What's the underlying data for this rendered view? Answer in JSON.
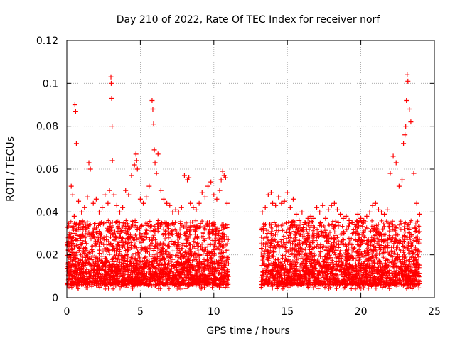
{
  "chart_data": {
    "type": "scatter",
    "title": "Day 210 of 2022, Rate Of TEC Index for receiver norf",
    "xlabel": "GPS time / hours",
    "ylabel": "ROTI / TECUs",
    "xlim": [
      0,
      25
    ],
    "ylim": [
      0,
      0.12
    ],
    "xticks": [
      0,
      5,
      10,
      15,
      20,
      25
    ],
    "xtick_labels": [
      "0",
      "5",
      "10",
      "15",
      "20",
      "25"
    ],
    "yticks": [
      0,
      0.02,
      0.04,
      0.06,
      0.08,
      0.1,
      0.12
    ],
    "ytick_labels": [
      "0",
      "0.02",
      "0.04",
      "0.06",
      "0.08",
      "0.1",
      "0.12"
    ],
    "grid": true,
    "legend": "none",
    "marker": "+",
    "series_color": "#ff0000",
    "data_gap_hours": [
      11.0,
      13.2
    ],
    "series": [
      {
        "x": [
          0.1,
          0.2,
          0.3,
          0.4,
          0.5,
          0.55,
          0.6,
          0.65,
          0.8,
          1.0,
          1.2,
          1.4,
          1.5,
          1.6,
          1.8,
          2.0,
          2.2,
          2.4,
          2.6,
          2.8,
          2.9,
          3.0,
          3.02,
          3.05,
          3.08,
          3.1,
          3.2,
          3.4,
          3.6,
          3.8,
          4.0,
          4.2,
          4.4,
          4.6,
          4.7,
          4.75,
          4.8,
          5.0,
          5.2,
          5.4,
          5.6,
          5.8,
          5.85,
          5.9,
          5.95,
          6.0,
          6.1,
          6.2,
          6.4,
          6.6,
          6.8,
          7.0,
          7.2,
          7.4,
          7.6,
          7.8,
          8.0,
          8.2,
          8.3,
          8.4,
          8.6,
          8.8,
          9.0,
          9.2,
          9.4,
          9.6,
          9.8,
          10.0,
          10.2,
          10.4,
          10.5,
          10.6,
          10.7,
          10.8,
          10.9,
          13.3,
          13.5,
          13.7,
          13.9,
          14.0,
          14.2,
          14.4,
          14.6,
          14.8,
          15.0,
          15.2,
          15.4,
          15.6,
          15.8,
          16.0,
          16.2,
          16.4,
          16.6,
          16.8,
          17.0,
          17.2,
          17.4,
          17.6,
          17.8,
          18.0,
          18.2,
          18.4,
          18.6,
          18.8,
          19.0,
          19.2,
          19.4,
          19.6,
          19.8,
          20.0,
          20.2,
          20.4,
          20.6,
          20.8,
          21.0,
          21.2,
          21.4,
          21.6,
          21.8,
          22.0,
          22.2,
          22.4,
          22.6,
          22.8,
          22.9,
          23.0,
          23.05,
          23.1,
          23.15,
          23.2,
          23.3,
          23.4,
          23.6,
          23.8,
          24.0
        ],
        "y": [
          0.033,
          0.028,
          0.052,
          0.048,
          0.038,
          0.09,
          0.087,
          0.072,
          0.045,
          0.04,
          0.042,
          0.047,
          0.063,
          0.06,
          0.044,
          0.046,
          0.04,
          0.042,
          0.048,
          0.044,
          0.05,
          0.103,
          0.1,
          0.093,
          0.08,
          0.064,
          0.048,
          0.043,
          0.04,
          0.042,
          0.05,
          0.048,
          0.057,
          0.062,
          0.067,
          0.064,
          0.06,
          0.046,
          0.044,
          0.047,
          0.052,
          0.092,
          0.088,
          0.081,
          0.069,
          0.063,
          0.058,
          0.067,
          0.05,
          0.046,
          0.044,
          0.043,
          0.04,
          0.041,
          0.04,
          0.042,
          0.057,
          0.055,
          0.056,
          0.044,
          0.042,
          0.041,
          0.044,
          0.049,
          0.047,
          0.052,
          0.054,
          0.048,
          0.046,
          0.05,
          0.055,
          0.059,
          0.057,
          0.056,
          0.044,
          0.04,
          0.042,
          0.048,
          0.049,
          0.044,
          0.043,
          0.047,
          0.044,
          0.045,
          0.049,
          0.042,
          0.046,
          0.039,
          0.036,
          0.04,
          0.035,
          0.037,
          0.038,
          0.037,
          0.042,
          0.04,
          0.043,
          0.037,
          0.041,
          0.043,
          0.044,
          0.041,
          0.039,
          0.037,
          0.038,
          0.036,
          0.035,
          0.034,
          0.039,
          0.037,
          0.036,
          0.038,
          0.04,
          0.043,
          0.044,
          0.041,
          0.04,
          0.039,
          0.041,
          0.058,
          0.066,
          0.063,
          0.052,
          0.055,
          0.072,
          0.076,
          0.08,
          0.092,
          0.104,
          0.101,
          0.088,
          0.082,
          0.058,
          0.044,
          0.039
        ]
      }
    ]
  }
}
